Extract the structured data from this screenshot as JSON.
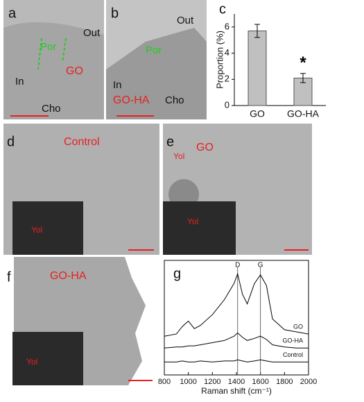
{
  "micrographs": [
    {
      "label": "a",
      "texts": [
        "Out",
        "Por",
        "GO",
        "In",
        "Cho"
      ]
    },
    {
      "label": "b",
      "texts": [
        "Out",
        "Por",
        "In",
        "GO-HA",
        "Cho"
      ]
    },
    {
      "label": "d",
      "texts": [
        "Control",
        "Yol"
      ]
    },
    {
      "label": "e",
      "texts": [
        "GO",
        "Yol",
        "Yol"
      ]
    },
    {
      "label": "f",
      "texts": [
        "GO-HA",
        "Yol"
      ]
    }
  ],
  "chart_data": [
    {
      "type": "bar",
      "panel_label": "c",
      "categories": [
        "GO",
        "GO-HA"
      ],
      "values": [
        5.7,
        2.1
      ],
      "errors": [
        0.5,
        0.35
      ],
      "color": "#c0c0c0",
      "ylim": [
        0,
        7
      ],
      "yticks": [
        0,
        2,
        4,
        6
      ],
      "ylabel": "Proportion (%)",
      "significance_mark": "*"
    },
    {
      "type": "line",
      "panel_label": "g",
      "x": [
        800,
        900,
        950,
        1000,
        1050,
        1100,
        1200,
        1300,
        1380,
        1410,
        1450,
        1490,
        1550,
        1600,
        1650,
        1700,
        1800,
        1900,
        2000
      ],
      "xlim": [
        800,
        2000
      ],
      "xticks": [
        800,
        1000,
        1200,
        1400,
        1600,
        1800,
        2000
      ],
      "xlabel": "Raman shift (cm⁻¹)",
      "ylim": [
        0,
        10
      ],
      "reference_lines": [
        {
          "value": 1410,
          "label": "D"
        },
        {
          "value": 1600,
          "label": "G"
        }
      ],
      "series": [
        {
          "name": "GO",
          "color": "#000000",
          "values": [
            3.6,
            3.8,
            4.5,
            5.0,
            4.3,
            4.6,
            5.6,
            7.0,
            8.5,
            9.4,
            7.5,
            6.6,
            8.5,
            9.3,
            8.3,
            5.2,
            4.2,
            4.0,
            3.8
          ]
        },
        {
          "name": "GO-HA",
          "color": "#000000",
          "values": [
            2.5,
            2.6,
            2.6,
            2.7,
            2.7,
            2.8,
            3.0,
            3.2,
            3.6,
            3.9,
            3.5,
            3.2,
            3.4,
            3.6,
            3.3,
            2.8,
            2.6,
            2.5,
            2.5
          ]
        },
        {
          "name": "Control",
          "color": "#000000",
          "values": [
            1.2,
            1.2,
            1.3,
            1.2,
            1.2,
            1.3,
            1.2,
            1.3,
            1.3,
            1.4,
            1.3,
            1.2,
            1.3,
            1.4,
            1.3,
            1.2,
            1.2,
            1.2,
            1.2
          ]
        }
      ]
    }
  ]
}
